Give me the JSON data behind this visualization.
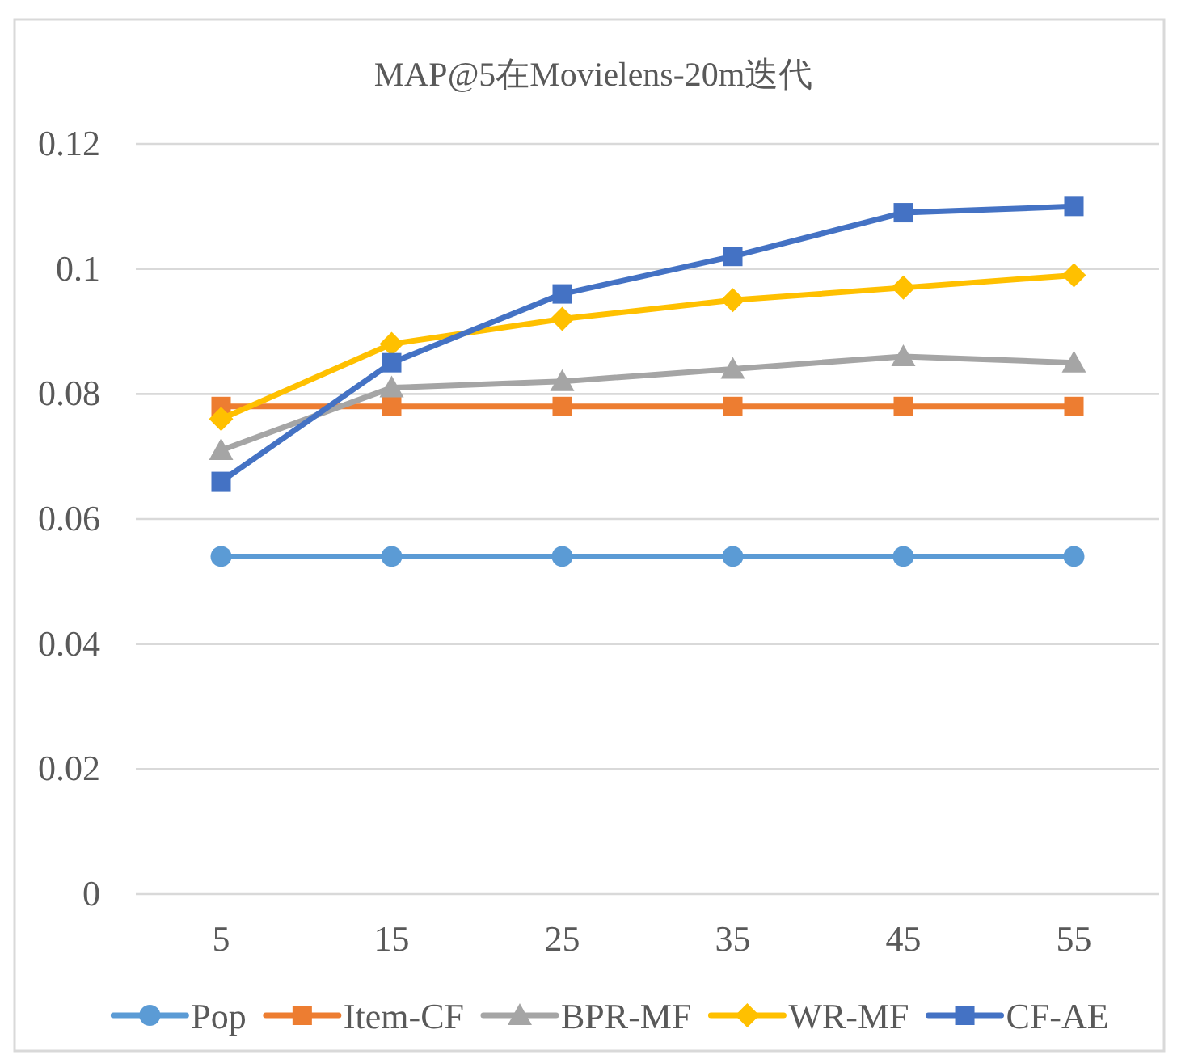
{
  "chart_data": {
    "type": "line",
    "title": "MAP@5在Movielens-20m迭代",
    "categories": [
      "5",
      "15",
      "25",
      "35",
      "45",
      "55"
    ],
    "series": [
      {
        "name": "Pop",
        "color": "#5b9bd5",
        "marker": "circle",
        "values": [
          0.054,
          0.054,
          0.054,
          0.054,
          0.054,
          0.054
        ]
      },
      {
        "name": "Item-CF",
        "color": "#ed7d31",
        "marker": "square",
        "values": [
          0.078,
          0.078,
          0.078,
          0.078,
          0.078,
          0.078
        ]
      },
      {
        "name": "BPR-MF",
        "color": "#a5a5a5",
        "marker": "triangle",
        "values": [
          0.071,
          0.081,
          0.082,
          0.084,
          0.086,
          0.085
        ]
      },
      {
        "name": "WR-MF",
        "color": "#ffc000",
        "marker": "diamond",
        "values": [
          0.076,
          0.088,
          0.092,
          0.095,
          0.097,
          0.099
        ]
      },
      {
        "name": "CF-AE",
        "color": "#4472c4",
        "marker": "square",
        "values": [
          0.066,
          0.085,
          0.096,
          0.102,
          0.109,
          0.11
        ]
      }
    ],
    "ylim": [
      0,
      0.12
    ],
    "yticks": [
      0,
      0.02,
      0.04,
      0.06,
      0.08,
      0.1,
      0.12
    ],
    "grid": "y",
    "legend": "bottom"
  }
}
